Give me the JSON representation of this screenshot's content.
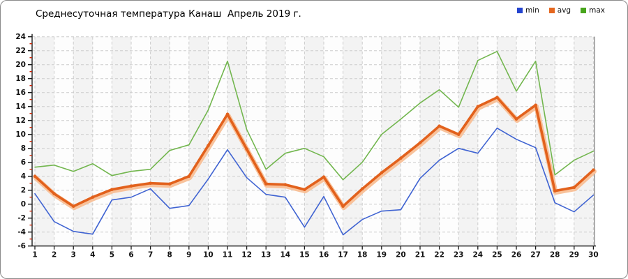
{
  "title": "Среднесуточная температура Канаш  Апрель 2019 г.",
  "legend": {
    "items": [
      {
        "label": "min",
        "color": "#2444cf"
      },
      {
        "label": "avg",
        "color": "#e5671f"
      },
      {
        "label": "max",
        "color": "#47a51c"
      }
    ]
  },
  "plot_style": {
    "stripe_odd": "#f3f3f3",
    "stripe_even": "#fdfdfd",
    "grid_color": "#cccccc",
    "axis_color": "#1a1a1a",
    "right_border_color": "#777777",
    "minor_tick_color": "#cc2200"
  },
  "chart_data": {
    "type": "line",
    "title": "Среднесуточная температура Канаш  Апрель 2019 г.",
    "xlabel": "",
    "ylabel": "",
    "ylim": [
      -6,
      24
    ],
    "grid": true,
    "legend_position": "top-right",
    "y_ticks": [
      24,
      22,
      20,
      18,
      16,
      14,
      12,
      10,
      8,
      6,
      4,
      2,
      0,
      -2,
      -4,
      -6
    ],
    "categories": [
      1,
      2,
      3,
      4,
      5,
      6,
      7,
      8,
      9,
      10,
      11,
      12,
      13,
      14,
      15,
      16,
      17,
      18,
      19,
      20,
      21,
      22,
      23,
      24,
      25,
      26,
      27,
      28,
      29,
      30
    ],
    "series": [
      {
        "name": "max",
        "color": "#72b64e",
        "width": 1.6,
        "values": [
          5.3,
          5.6,
          4.7,
          5.8,
          4.1,
          4.7,
          5.0,
          7.7,
          8.5,
          13.5,
          20.5,
          10.7,
          5.0,
          7.3,
          8.0,
          6.8,
          3.5,
          6.0,
          10.0,
          12.2,
          14.5,
          16.4,
          13.9,
          20.6,
          21.9,
          16.2,
          20.5,
          4.2,
          6.3,
          7.6
        ]
      },
      {
        "name": "min",
        "color": "#3f63d2",
        "width": 1.6,
        "values": [
          1.5,
          -2.5,
          -3.9,
          -4.3,
          0.6,
          1.0,
          2.2,
          -0.6,
          -0.2,
          3.6,
          7.8,
          3.8,
          1.4,
          1.0,
          -3.3,
          1.1,
          -4.4,
          -2.2,
          -1.0,
          -0.8,
          3.7,
          6.3,
          8.0,
          7.3,
          10.9,
          9.3,
          8.1,
          0.2,
          -1.1,
          1.3
        ]
      },
      {
        "name": "avg",
        "color": "#e2611c",
        "halo_color": "#f8c29b",
        "width": 3.6,
        "markers": true,
        "values": [
          4.0,
          1.5,
          -0.3,
          1.0,
          2.1,
          2.6,
          3.0,
          2.9,
          4.0,
          8.4,
          12.9,
          7.9,
          2.9,
          2.8,
          2.1,
          3.9,
          -0.3,
          2.2,
          4.5,
          6.6,
          8.8,
          11.2,
          10.0,
          14.0,
          15.3,
          12.2,
          14.2,
          1.9,
          2.4,
          4.9
        ]
      }
    ]
  }
}
